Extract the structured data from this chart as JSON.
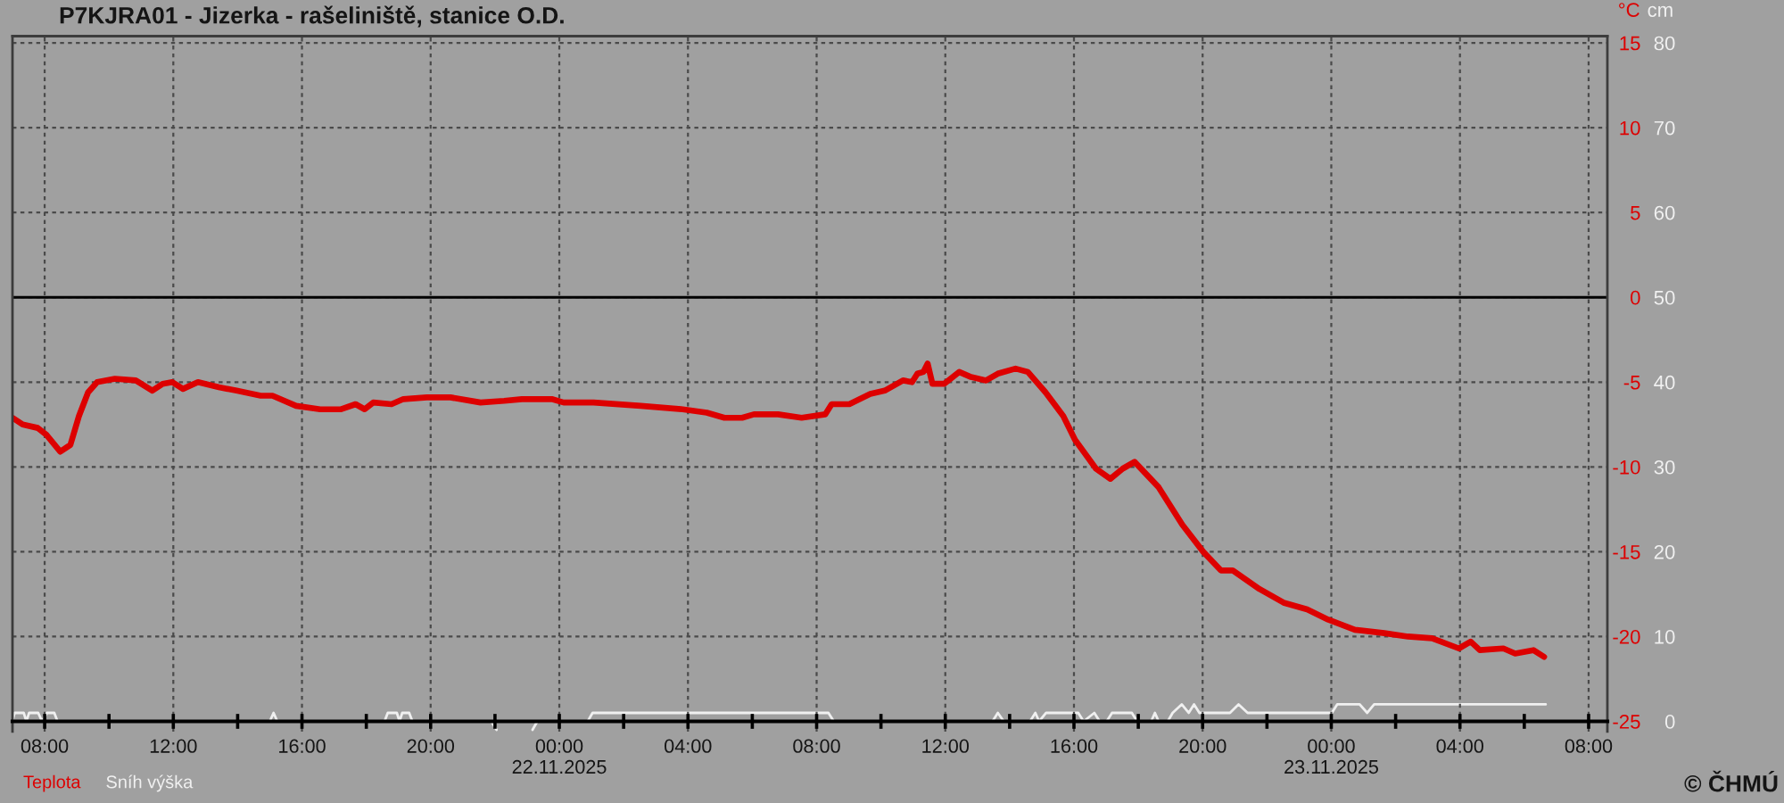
{
  "chart_data": {
    "type": "line",
    "title": "P7KJRA01 - Jizerka - rašeliniště, stanice O.D.",
    "ylabel": "°C",
    "y2label": "cm",
    "annotations": [
      "© ČHMÚ"
    ],
    "series": [
      {
        "name": "Teplota",
        "color": "#dd0000",
        "x": [
          "2025-11-21T07:00",
          "2025-11-21T07:19",
          "2025-11-21T07:47",
          "2025-11-21T08:03",
          "2025-11-21T08:29",
          "2025-11-21T08:48",
          "2025-11-21T09:04",
          "2025-11-21T09:21",
          "2025-11-21T09:38",
          "2025-11-21T10:11",
          "2025-11-21T10:50",
          "2025-11-21T11:21",
          "2025-11-21T11:40",
          "2025-11-21T11:58",
          "2025-11-21T12:18",
          "2025-11-21T12:46",
          "2025-11-21T13:25",
          "2025-11-21T13:58",
          "2025-11-21T14:43",
          "2025-11-21T15:05",
          "2025-11-21T15:49",
          "2025-11-21T16:34",
          "2025-11-21T17:13",
          "2025-11-21T17:40",
          "2025-11-21T17:57",
          "2025-11-21T18:13",
          "2025-11-21T18:47",
          "2025-11-21T19:09",
          "2025-11-21T19:53",
          "2025-11-21T20:37",
          "2025-11-21T21:33",
          "2025-11-21T22:17",
          "2025-11-21T22:50",
          "2025-11-21T23:46",
          "2025-11-22T00:08",
          "2025-11-22T01:04",
          "2025-11-22T02:32",
          "2025-11-22T03:50",
          "2025-11-22T04:35",
          "2025-11-22T05:08",
          "2025-11-22T05:41",
          "2025-11-22T06:03",
          "2025-11-22T06:48",
          "2025-11-22T07:32",
          "2025-11-22T08:16",
          "2025-11-22T08:28",
          "2025-11-22T09:01",
          "2025-11-22T09:40",
          "2025-11-22T10:07",
          "2025-11-22T10:41",
          "2025-11-22T10:58",
          "2025-11-22T11:08",
          "2025-11-22T11:19",
          "2025-11-22T11:27",
          "2025-11-22T11:36",
          "2025-11-22T11:58",
          "2025-11-22T12:26",
          "2025-11-22T12:48",
          "2025-11-22T13:16",
          "2025-11-22T13:38",
          "2025-11-22T14:11",
          "2025-11-22T14:34",
          "2025-11-22T15:07",
          "2025-11-22T15:40",
          "2025-11-22T16:02",
          "2025-11-22T16:41",
          "2025-11-22T17:08",
          "2025-11-22T17:31",
          "2025-11-22T17:53",
          "2025-11-22T18:38",
          "2025-11-22T19:22",
          "2025-11-22T20:01",
          "2025-11-22T20:34",
          "2025-11-22T20:56",
          "2025-11-22T21:46",
          "2025-11-22T22:31",
          "2025-11-22T23:15",
          "2025-11-22T23:54",
          "2025-11-23T00:44",
          "2025-11-23T01:39",
          "2025-11-23T02:23",
          "2025-11-23T03:08",
          "2025-11-23T03:58",
          "2025-11-23T04:20",
          "2025-11-23T04:37",
          "2025-11-23T05:21",
          "2025-11-23T05:43",
          "2025-11-23T06:17",
          "2025-11-23T06:37"
        ],
        "values": [
          -7.1,
          -7.5,
          -7.7,
          -8.1,
          -9.1,
          -8.7,
          -7.0,
          -5.6,
          -5.0,
          -4.8,
          -4.9,
          -5.5,
          -5.1,
          -5.0,
          -5.4,
          -5.0,
          -5.3,
          -5.5,
          -5.8,
          -5.8,
          -6.4,
          -6.6,
          -6.6,
          -6.3,
          -6.6,
          -6.2,
          -6.3,
          -6.0,
          -5.9,
          -5.9,
          -6.2,
          -6.1,
          -6.0,
          -6.0,
          -6.2,
          -6.2,
          -6.4,
          -6.6,
          -6.8,
          -7.1,
          -7.1,
          -6.9,
          -6.9,
          -7.1,
          -6.9,
          -6.3,
          -6.3,
          -5.7,
          -5.5,
          -4.9,
          -5.0,
          -4.5,
          -4.4,
          -3.9,
          -5.1,
          -5.1,
          -4.4,
          -4.7,
          -4.9,
          -4.5,
          -4.2,
          -4.4,
          -5.6,
          -7.0,
          -8.4,
          -10.1,
          -10.7,
          -10.1,
          -9.7,
          -11.2,
          -13.4,
          -15.0,
          -16.1,
          -16.1,
          -17.2,
          -18.0,
          -18.4,
          -19.0,
          -19.6,
          -19.8,
          -20.0,
          -20.1,
          -20.7,
          -20.3,
          -20.8,
          -20.7,
          -21.0,
          -20.8,
          -21.2
        ]
      },
      {
        "name": "Sníh výška",
        "color": "#f0f0f0",
        "axis": "y2",
        "x": [
          "2025-11-21T07:00",
          "2025-11-21T07:04",
          "2025-11-21T07:21",
          "2025-11-21T07:26",
          "2025-11-21T07:31",
          "2025-11-21T07:48",
          "2025-11-21T07:55",
          "2025-11-21T08:04",
          "2025-11-21T08:18",
          "2025-11-21T08:24",
          "2025-11-21T15:00",
          "2025-11-21T15:07",
          "2025-11-21T15:14",
          "2025-11-21T18:34",
          "2025-11-21T18:40",
          "2025-11-21T18:57",
          "2025-11-21T19:02",
          "2025-11-21T19:07",
          "2025-11-21T19:20",
          "2025-11-21T19:26",
          "2025-11-21T21:53",
          "2025-11-21T22:03",
          "2025-11-21T22:30",
          "2025-11-21T23:10",
          "2025-11-21T23:19",
          "2025-11-22T00:53",
          "2025-11-22T01:02",
          "2025-11-22T08:22",
          "2025-11-22T08:32",
          "2025-11-22T13:28",
          "2025-11-22T13:38",
          "2025-11-22T13:49",
          "2025-11-22T14:38",
          "2025-11-22T14:48",
          "2025-11-22T14:55",
          "2025-11-22T15:08",
          "2025-11-22T16:08",
          "2025-11-22T16:18",
          "2025-11-22T16:38",
          "2025-11-22T16:48",
          "2025-11-22T17:01",
          "2025-11-22T17:11",
          "2025-11-22T17:48",
          "2025-11-22T17:58",
          "2025-11-22T18:24",
          "2025-11-22T18:31",
          "2025-11-22T18:38",
          "2025-11-22T18:55",
          "2025-11-22T19:04",
          "2025-11-22T19:21",
          "2025-11-22T19:34",
          "2025-11-22T19:44",
          "2025-11-22T19:54",
          "2025-11-22T20:51",
          "2025-11-22T21:07",
          "2025-11-22T21:24",
          "2025-11-23T00:01",
          "2025-11-23T00:11",
          "2025-11-23T00:53",
          "2025-11-23T01:07",
          "2025-11-23T01:20",
          "2025-11-23T06:40"
        ],
        "values": [
          0,
          1,
          1,
          0,
          1,
          1,
          0,
          1,
          1,
          0,
          0,
          1,
          0,
          0,
          1,
          1,
          0,
          1,
          1,
          0,
          0,
          -1,
          null,
          -1,
          0,
          0,
          1,
          1,
          0,
          0,
          1,
          0,
          0,
          1,
          0,
          1,
          1,
          0,
          1,
          0,
          0,
          1,
          1,
          0,
          0,
          1,
          0,
          0,
          1,
          2,
          1,
          2,
          1,
          1,
          2,
          1,
          1,
          2,
          2,
          1,
          2,
          2
        ]
      }
    ],
    "xlim": [
      "2025-11-21T07:00",
      "2025-11-23T08:35"
    ],
    "xticks": [
      {
        "value": "2025-11-21T08:00",
        "label": "08:00"
      },
      {
        "value": "2025-11-21T10:00",
        "label": null
      },
      {
        "value": "2025-11-21T12:00",
        "label": "12:00"
      },
      {
        "value": "2025-11-21T14:00",
        "label": null
      },
      {
        "value": "2025-11-21T16:00",
        "label": "16:00"
      },
      {
        "value": "2025-11-21T18:00",
        "label": null
      },
      {
        "value": "2025-11-21T20:00",
        "label": "20:00"
      },
      {
        "value": "2025-11-21T22:00",
        "label": null
      },
      {
        "value": "2025-11-22T00:00",
        "label": "00:00\n22.11.2025"
      },
      {
        "value": "2025-11-22T02:00",
        "label": null
      },
      {
        "value": "2025-11-22T04:00",
        "label": "04:00"
      },
      {
        "value": "2025-11-22T06:00",
        "label": null
      },
      {
        "value": "2025-11-22T08:00",
        "label": "08:00"
      },
      {
        "value": "2025-11-22T10:00",
        "label": null
      },
      {
        "value": "2025-11-22T12:00",
        "label": "12:00"
      },
      {
        "value": "2025-11-22T14:00",
        "label": null
      },
      {
        "value": "2025-11-22T16:00",
        "label": "16:00"
      },
      {
        "value": "2025-11-22T18:00",
        "label": null
      },
      {
        "value": "2025-11-22T20:00",
        "label": "20:00"
      },
      {
        "value": "2025-11-22T22:00",
        "label": null
      },
      {
        "value": "2025-11-23T00:00",
        "label": "00:00\n23.11.2025"
      },
      {
        "value": "2025-11-23T02:00",
        "label": null
      },
      {
        "value": "2025-11-23T04:00",
        "label": "04:00"
      },
      {
        "value": "2025-11-23T06:00",
        "label": null
      },
      {
        "value": "2025-11-23T08:00",
        "label": "08:00"
      }
    ],
    "ylim": [
      -25.6,
      15.4
    ],
    "yticks": [
      15,
      10,
      5,
      0,
      -5,
      -10,
      -15,
      -20,
      -25
    ],
    "y2lim": [
      -1.2,
      80.8
    ],
    "y2ticks": [
      80,
      70,
      60,
      50,
      40,
      30,
      20,
      10,
      0
    ],
    "ref_lines": [
      {
        "axis": "y",
        "value": 0,
        "color": "#000000"
      }
    ],
    "grid": true,
    "legend": "bottom left"
  }
}
